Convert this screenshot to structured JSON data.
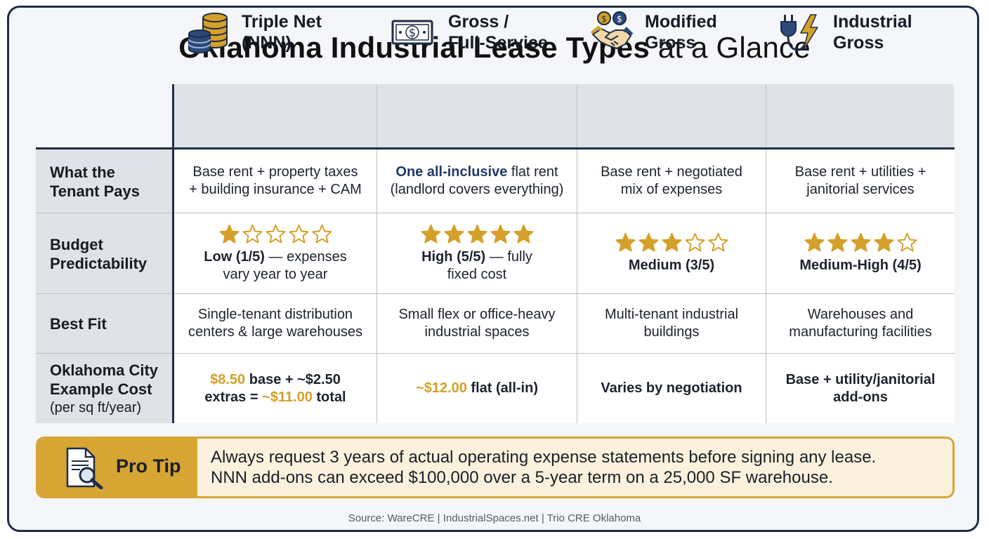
{
  "title": {
    "bold": "Oklahoma Industrial Lease Types",
    "light": "at a Glance"
  },
  "columns": [
    {
      "line1": "Triple Net",
      "line2": "(NNN)",
      "icon": "coins-stack-icon"
    },
    {
      "line1": "Gross /",
      "line2": "Full-Service",
      "icon": "dollar-bill-icon"
    },
    {
      "line1": "Modified",
      "line2": "Gross",
      "icon": "handshake-icon"
    },
    {
      "line1": "Industrial",
      "line2": "Gross",
      "icon": "plug-lightning-icon"
    }
  ],
  "rows": {
    "pays": {
      "label1": "What the",
      "label2": "Tenant Pays",
      "cells": [
        {
          "l1": "Base rent + property taxes",
          "l2": "+ building insurance + CAM"
        },
        {
          "hl": "One all-inclusive",
          "l1rest": " flat rent",
          "l2": "(landlord covers everything)"
        },
        {
          "l1": "Base rent + negotiated",
          "l2": "mix of expenses"
        },
        {
          "l1": "Base rent + utilities +",
          "l2": "janitorial services"
        }
      ]
    },
    "budget": {
      "label1": "Budget",
      "label2": "Predictability",
      "cells": [
        {
          "rating": 1,
          "bold": "Low (1/5)",
          "rest": " — expenses",
          "l2": "vary year to year"
        },
        {
          "rating": 5,
          "bold": "High (5/5)",
          "rest": " — fully",
          "l2": "fixed cost"
        },
        {
          "rating": 3,
          "bold": "Medium (3/5)",
          "rest": "",
          "l2": ""
        },
        {
          "rating": 4,
          "bold": "Medium-High (4/5)",
          "rest": "",
          "l2": ""
        }
      ]
    },
    "fit": {
      "label1": "Best Fit",
      "cells": [
        {
          "l1": "Single-tenant distribution",
          "l2": "centers & large warehouses"
        },
        {
          "l1": "Small flex or office-heavy",
          "l2": "industrial spaces"
        },
        {
          "l1": "Multi-tenant industrial",
          "l2": "buildings"
        },
        {
          "l1": "Warehouses and",
          "l2": "manufacturing facilities"
        }
      ]
    },
    "cost": {
      "label1": "Oklahoma City",
      "label2": "Example Cost",
      "label3": "(per sq ft/year)",
      "cells": [
        {
          "a": "$8.50",
          "b": " base + ~$2.50",
          "c": "extras = ",
          "d": "~$11.00",
          "e": " total"
        },
        {
          "a": "~$12.00",
          "b": " flat (all-in)"
        },
        {
          "b": "Varies by negotiation"
        },
        {
          "b": "Base + utility/janitorial",
          "c2": "add-ons"
        }
      ]
    }
  },
  "protip": {
    "label": "Pro Tip",
    "icon": "document-magnifier-icon",
    "line1": "Always request 3 years of actual operating expense statements before signing any lease.",
    "line2": "NNN add-ons can exceed $100,000 over a 5-year term on a 25,000 SF warehouse."
  },
  "source": "Source: WareCRE | IndustrialSpaces.net | Trio CRE Oklahoma",
  "colors": {
    "navy": "#1f2d44",
    "gold": "#d4a02a",
    "header_bg": "#dfe2e7",
    "tip_bg": "#fbf1dc"
  }
}
